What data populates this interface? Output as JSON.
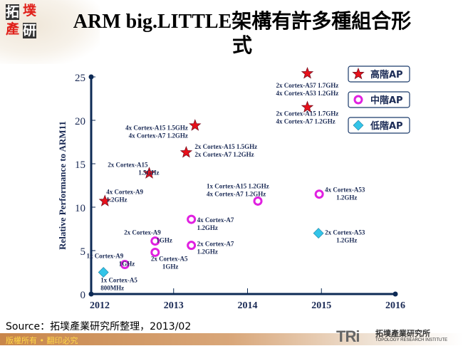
{
  "header": {
    "logo_chars": [
      "拓",
      "墣",
      "產",
      "研"
    ],
    "title_line1": "ARM big.LITTLE架構有許多種組合形",
    "title_line2": "式"
  },
  "chart_data": {
    "type": "scatter",
    "title": "ARM big.LITTLE架構有許多種組合形式",
    "ylabel": "Relative Performance to ARM11",
    "xlabel": "",
    "xlim": [
      2012,
      2016
    ],
    "ylim": [
      0,
      25
    ],
    "x_ticks": [
      "2012",
      "2013",
      "2014",
      "2015",
      "2016"
    ],
    "y_ticks": [
      "0",
      "5",
      "10",
      "15",
      "20",
      "25"
    ],
    "grid": false,
    "legend_placement": "top-right",
    "series": [
      {
        "name": "高階AP",
        "marker": "star",
        "color": "#e8101a",
        "points": [
          {
            "x": 2012.07,
            "y": 10.7,
            "label": [
              "4x Cortex-A9",
              "1.2GHz"
            ]
          },
          {
            "x": 2012.67,
            "y": 13.9,
            "label": [
              "2x Cortex-A15",
              "1.5GHz"
            ]
          },
          {
            "x": 2013.17,
            "y": 16.3,
            "label": [
              "2x Cortex-A15 1.5GHz",
              "2x Cortex-A7  1.2GHz"
            ]
          },
          {
            "x": 2013.29,
            "y": 19.4,
            "label": [
              "4x Cortex-A15 1.5GHz",
              "4x Cortex-A7  1.2GHz"
            ]
          },
          {
            "x": 2014.81,
            "y": 21.5,
            "label": [
              "2x Cortex-A15 1.7GHz",
              "4x Cortex-A7  1.2GHz"
            ]
          },
          {
            "x": 2014.81,
            "y": 25.4,
            "label": [
              "2x Cortex-A57 1.7GHz",
              "4x Cortex-A53 1.2GHz"
            ]
          }
        ]
      },
      {
        "name": "中階AP",
        "marker": "ring",
        "color": "#e020e0",
        "points": [
          {
            "x": 2012.34,
            "y": 3.4,
            "label": [
              "1x Cortex-A9",
              "1GHz"
            ]
          },
          {
            "x": 2012.75,
            "y": 6.1,
            "label": [
              "2x Cortex-A9",
              "1GHz"
            ]
          },
          {
            "x": 2012.75,
            "y": 4.8,
            "label": [
              "2x Cortex-A5",
              "1GHz"
            ]
          },
          {
            "x": 2013.24,
            "y": 8.6,
            "label": [
              "4x Cortex-A7",
              "1.2GHz"
            ]
          },
          {
            "x": 2013.24,
            "y": 5.6,
            "label": [
              "2x Cortex-A7",
              "1.2GHz"
            ]
          },
          {
            "x": 2014.14,
            "y": 10.7,
            "label": [
              "1x Cortex-A15 1.2GHz",
              "4x Cortex-A7  1.2GHz"
            ]
          },
          {
            "x": 2014.97,
            "y": 11.5,
            "label": [
              "4x Cortex-A53",
              "1.2GHz"
            ]
          }
        ]
      },
      {
        "name": "低階AP",
        "marker": "diamond",
        "color": "#33c4e8",
        "points": [
          {
            "x": 2012.05,
            "y": 2.5,
            "label": [
              "1x Cortex-A5",
              "800MHz"
            ]
          },
          {
            "x": 2014.96,
            "y": 7.0,
            "label": [
              "2x Cortex-A53",
              "1.2GHz"
            ]
          }
        ]
      }
    ]
  },
  "footer": {
    "source": "Source：拓墣產業研究所整理，2013/02",
    "copyright": "版權所有 • 翻印必究",
    "brand_mark": "TRi",
    "brand_cn": "拓墣產業研究所",
    "brand_en": "TOPOLOGY RESEARCH INSTITUTE"
  },
  "colors": {
    "axis": "#0d2a55",
    "label_text": "#1a2a55",
    "footer_text": "#ffd84a"
  }
}
